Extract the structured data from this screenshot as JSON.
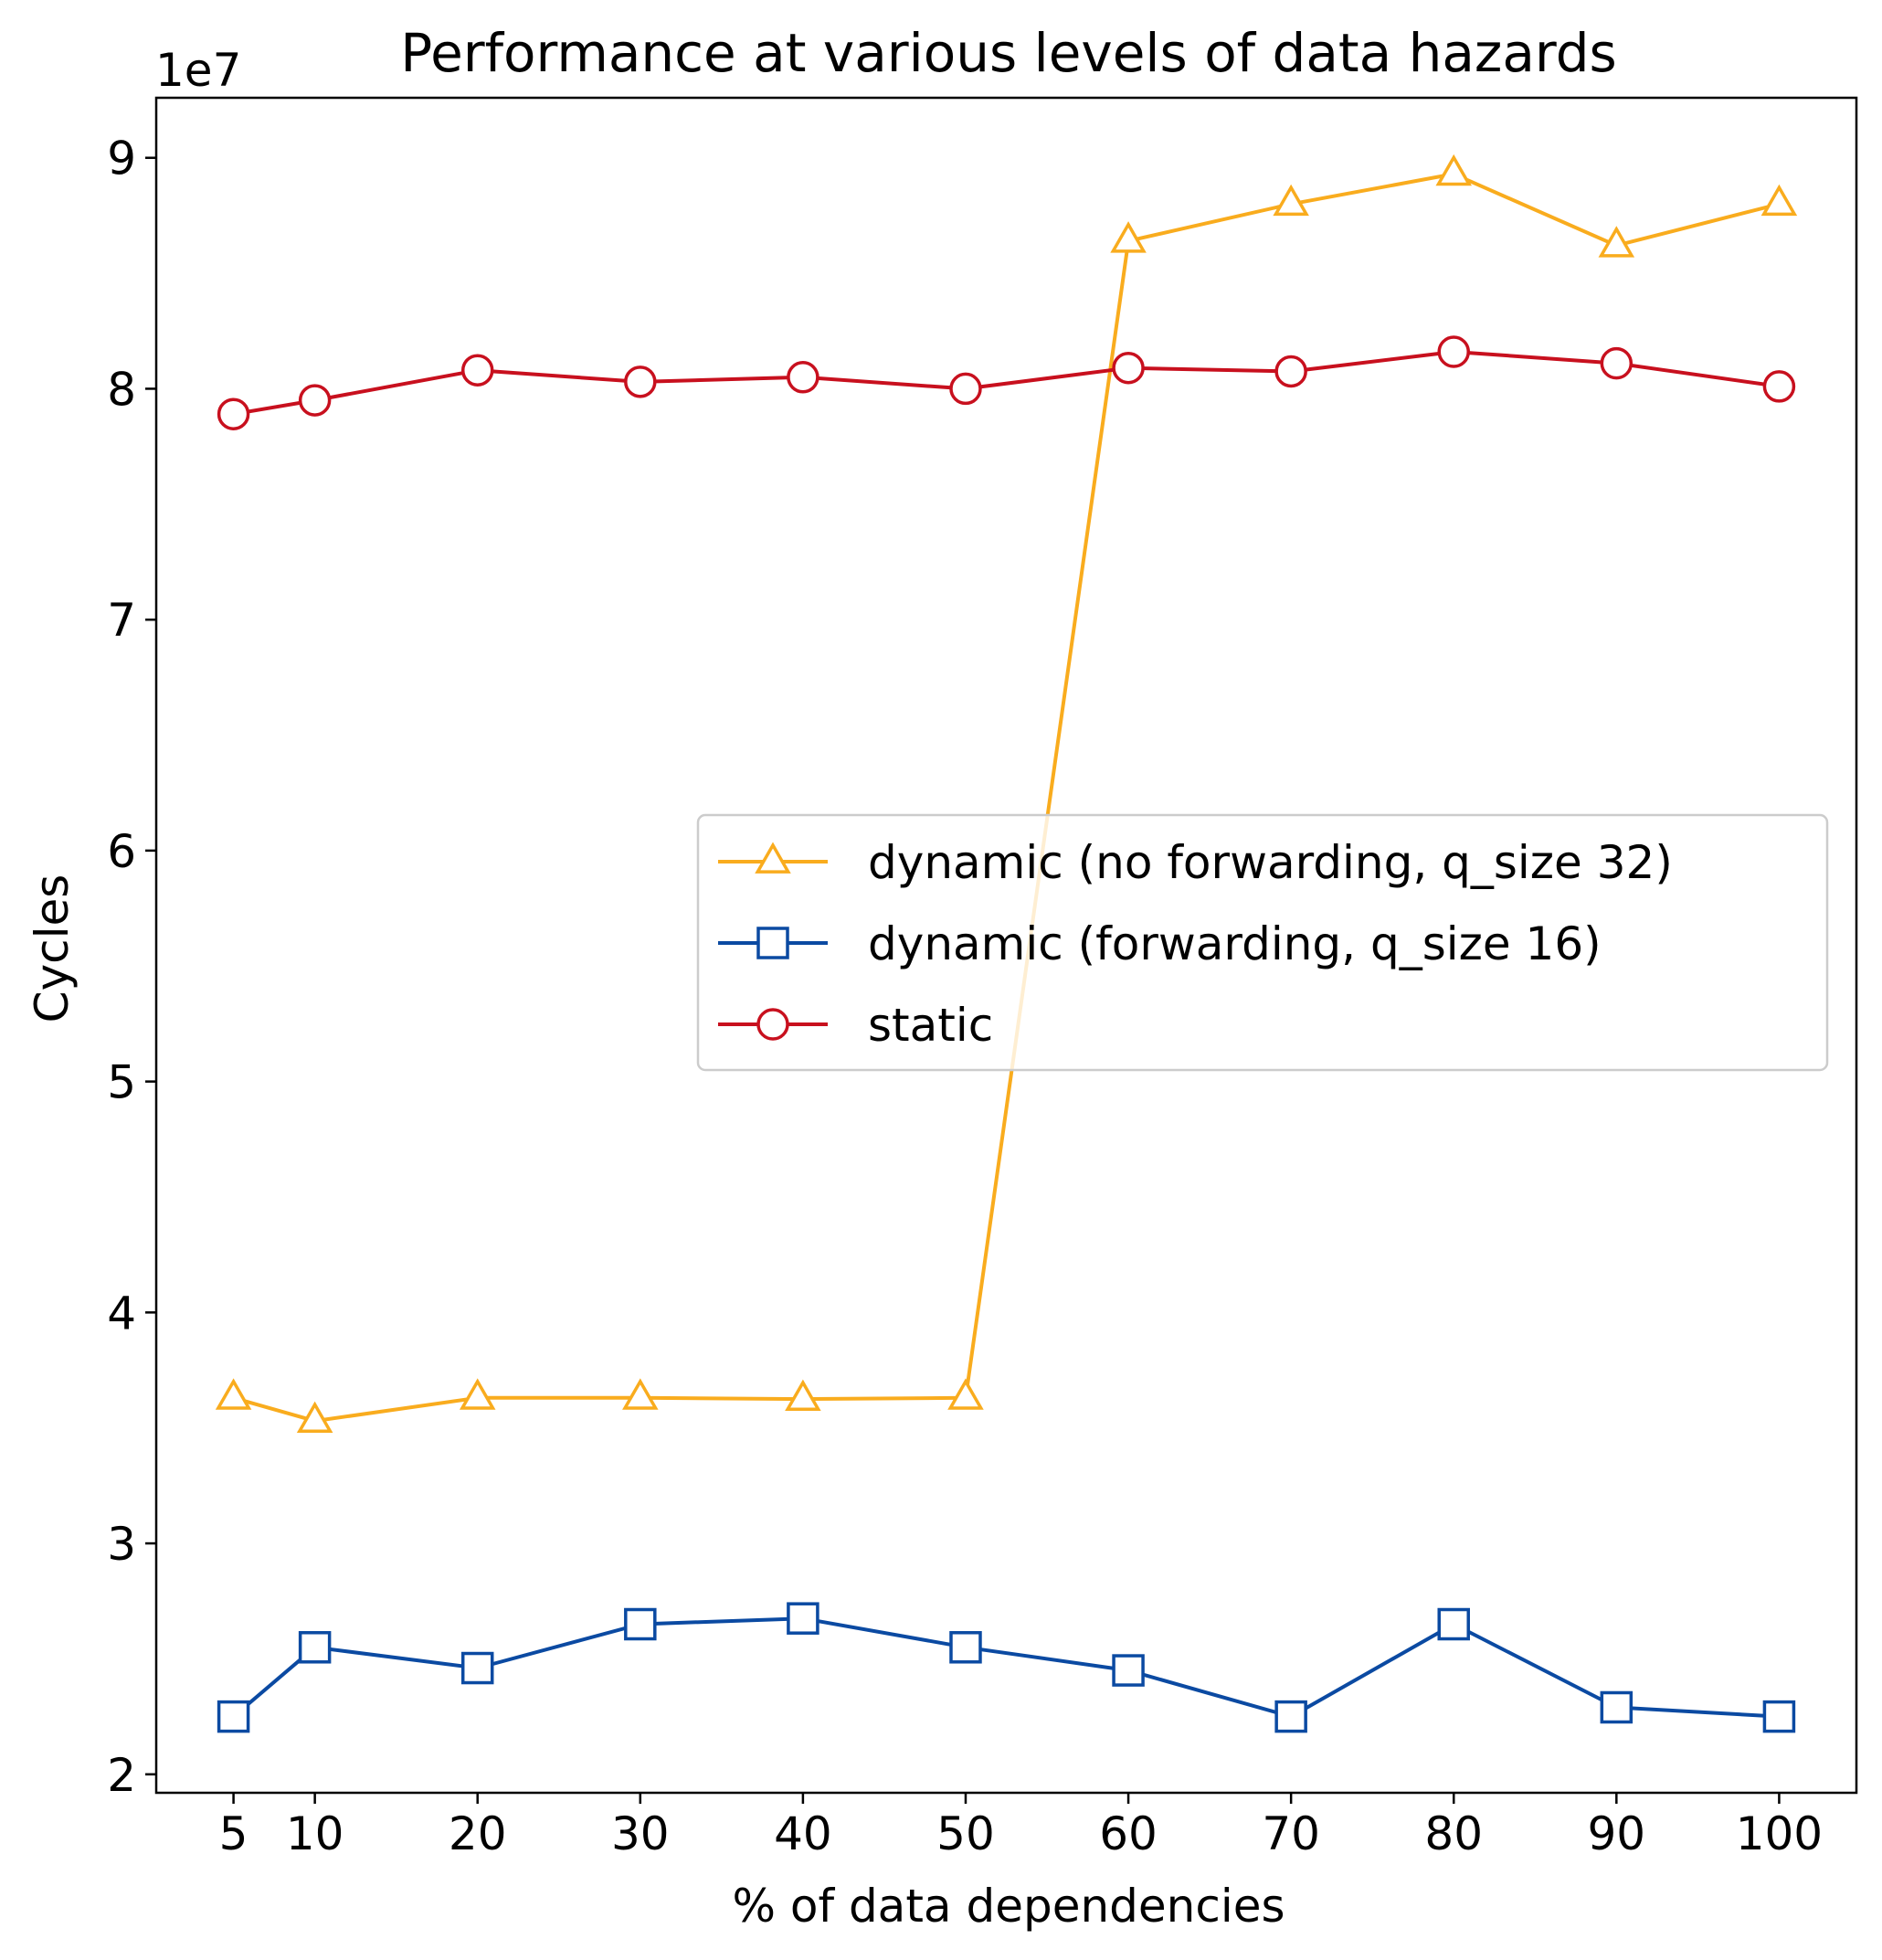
{
  "chart_data": {
    "type": "line",
    "title": "Performance at various levels of data hazards",
    "xlabel": "% of data dependencies",
    "ylabel": "Cycles",
    "y_offset_label": "1e7",
    "x": [
      5,
      10,
      20,
      30,
      40,
      50,
      60,
      70,
      80,
      90,
      100
    ],
    "x_ticks": [
      5,
      10,
      20,
      30,
      40,
      50,
      60,
      70,
      80,
      90,
      100
    ],
    "y_ticks": [
      2,
      3,
      4,
      5,
      6,
      7,
      8,
      9
    ],
    "y_scale": 10000000,
    "xlim": [
      0.25,
      104.75
    ],
    "ylim": [
      19200000,
      92600000
    ],
    "grid": false,
    "legend_position": "center-right",
    "series": [
      {
        "name": "dynamic (no forwarding, q_size 32)",
        "color": "#f9ac1e",
        "marker": "triangle",
        "values": [
          36300000,
          35300000,
          36300000,
          36300000,
          36250000,
          36300000,
          86400000,
          88000000,
          89300000,
          86200000,
          88000000
        ]
      },
      {
        "name": "dynamic (forwarding, q_size 16)",
        "color": "#0b4aa2",
        "marker": "square",
        "values": [
          22500000,
          25500000,
          24600000,
          26500000,
          26750000,
          25500000,
          24500000,
          22500000,
          26500000,
          22900000,
          22500000
        ]
      },
      {
        "name": "static",
        "color": "#c8101e",
        "marker": "circle",
        "values": [
          78900000,
          79500000,
          80800000,
          80300000,
          80500000,
          80000000,
          80900000,
          80750000,
          81600000,
          81100000,
          80100000
        ]
      }
    ]
  }
}
